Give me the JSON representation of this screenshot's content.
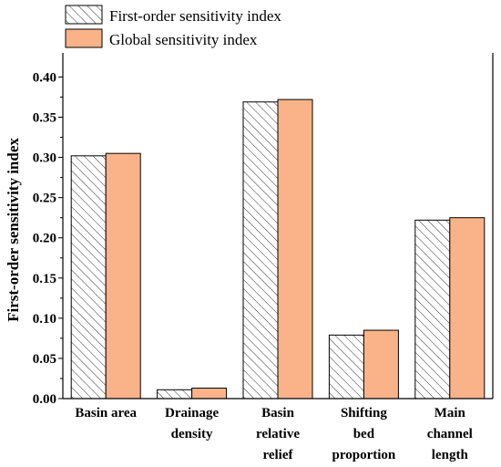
{
  "colors": {
    "global_fill": "#FAB388",
    "first_order_fill": "#ffffff",
    "hatch_stroke": "#333333",
    "bar_edge": "#000000",
    "axis": "#000000"
  },
  "chart_data": {
    "type": "bar",
    "ylabel": "First-order sensitivity index",
    "xlabel": "",
    "ylim": [
      0,
      0.43
    ],
    "yticks": [
      "0.00",
      "0.05",
      "0.10",
      "0.15",
      "0.20",
      "0.25",
      "0.30",
      "0.35",
      "0.40"
    ],
    "categories": [
      [
        "Basin area"
      ],
      [
        "Drainage",
        "density"
      ],
      [
        "Basin",
        "relative",
        "relief"
      ],
      [
        "Shifting",
        "bed",
        "proportion"
      ],
      [
        "Main",
        "channel",
        "length"
      ]
    ],
    "series": [
      {
        "name": "First-order sensitivity index",
        "pattern": "hatched",
        "values": [
          0.302,
          0.011,
          0.369,
          0.079,
          0.222
        ]
      },
      {
        "name": "Global sensitivity index",
        "pattern": "solid",
        "values": [
          0.305,
          0.013,
          0.372,
          0.085,
          0.225
        ]
      }
    ],
    "legend_position": "top-left",
    "grid": false
  }
}
